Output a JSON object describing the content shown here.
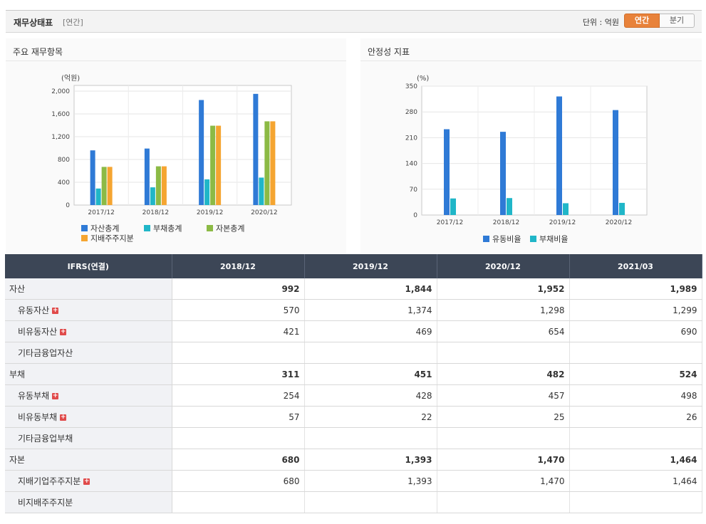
{
  "header": {
    "title": "재무상태표",
    "sub": "[연간]",
    "unit_label": "단위 : 억원",
    "toggle_annual": "연간",
    "toggle_quarter": "분기"
  },
  "panels": {
    "left_title": "주요 재무항목",
    "right_title": "안정성 지표"
  },
  "chart_data": [
    {
      "type": "bar",
      "title": "주요 재무항목",
      "ylabel": "(억원)",
      "categories": [
        "2017/12",
        "2018/12",
        "2019/12",
        "2020/12"
      ],
      "yticks": [
        "0",
        "400",
        "800",
        "1,200",
        "1,600",
        "2,000"
      ],
      "ylim": [
        0,
        2100
      ],
      "series": [
        {
          "name": "자산총계",
          "color": "#2f7ad6",
          "values": [
            960,
            992,
            1844,
            1952
          ]
        },
        {
          "name": "부채총계",
          "color": "#20b6c8",
          "values": [
            290,
            311,
            451,
            482
          ]
        },
        {
          "name": "자본총계",
          "color": "#8cba45",
          "values": [
            670,
            680,
            1393,
            1470
          ]
        },
        {
          "name": "지배주주지분",
          "color": "#f5a531",
          "values": [
            670,
            680,
            1393,
            1470
          ]
        }
      ],
      "grid": true,
      "legend": "bottom-left"
    },
    {
      "type": "bar",
      "title": "안정성 지표",
      "ylabel": "(%)",
      "categories": [
        "2017/12",
        "2018/12",
        "2019/12",
        "2020/12"
      ],
      "yticks": [
        "0",
        "70",
        "140",
        "210",
        "280",
        "350"
      ],
      "ylim": [
        0,
        350
      ],
      "series": [
        {
          "name": "유동비율",
          "color": "#2f7ad6",
          "values": [
            233,
            226,
            322,
            285
          ]
        },
        {
          "name": "부채비율",
          "color": "#20b6c8",
          "values": [
            45,
            46,
            32,
            33
          ]
        }
      ],
      "grid": true,
      "legend": "bottom-center"
    }
  ],
  "table": {
    "corner": "IFRS(연결)",
    "columns": [
      "2018/12",
      "2019/12",
      "2020/12",
      "2021/03"
    ],
    "rows": [
      {
        "label": "자산",
        "major": true,
        "plus": false,
        "values": [
          "992",
          "1,844",
          "1,952",
          "1,989"
        ]
      },
      {
        "label": "유동자산",
        "major": false,
        "plus": true,
        "values": [
          "570",
          "1,374",
          "1,298",
          "1,299"
        ]
      },
      {
        "label": "비유동자산",
        "major": false,
        "plus": true,
        "values": [
          "421",
          "469",
          "654",
          "690"
        ]
      },
      {
        "label": "기타금융업자산",
        "major": false,
        "plus": false,
        "values": [
          "",
          "",
          "",
          ""
        ]
      },
      {
        "label": "부채",
        "major": true,
        "plus": false,
        "values": [
          "311",
          "451",
          "482",
          "524"
        ]
      },
      {
        "label": "유동부채",
        "major": false,
        "plus": true,
        "values": [
          "254",
          "428",
          "457",
          "498"
        ]
      },
      {
        "label": "비유동부채",
        "major": false,
        "plus": true,
        "values": [
          "57",
          "22",
          "25",
          "26"
        ]
      },
      {
        "label": "기타금융업부채",
        "major": false,
        "plus": false,
        "values": [
          "",
          "",
          "",
          ""
        ]
      },
      {
        "label": "자본",
        "major": true,
        "plus": false,
        "values": [
          "680",
          "1,393",
          "1,470",
          "1,464"
        ]
      },
      {
        "label": "지배기업주주지분",
        "major": false,
        "plus": true,
        "values": [
          "680",
          "1,393",
          "1,470",
          "1,464"
        ]
      },
      {
        "label": "비지배주주지분",
        "major": false,
        "plus": false,
        "values": [
          "",
          "",
          "",
          ""
        ]
      }
    ],
    "plus_glyph": "+"
  }
}
